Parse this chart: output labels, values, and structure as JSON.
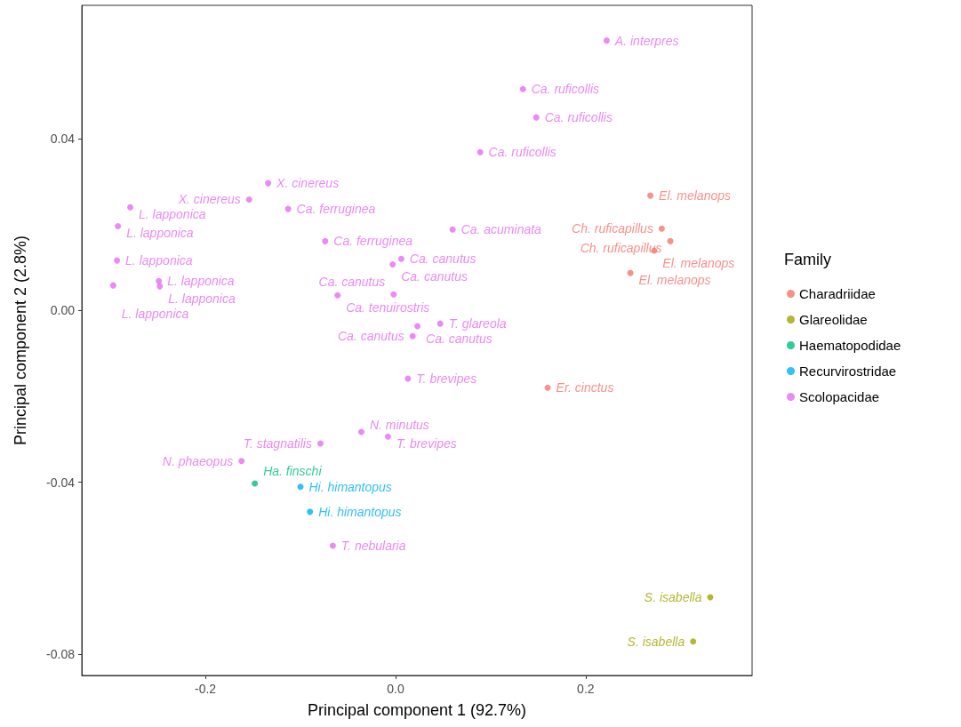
{
  "chart_data": {
    "type": "scatter",
    "xlabel": "Principal component 1 (92.7%)",
    "ylabel": "Principal component 2 (2.8%)",
    "legend_title": "Family",
    "legend": "right",
    "grid": false,
    "marker": "circle",
    "xlim": [
      -0.33,
      0.375
    ],
    "ylim": [
      -0.085,
      0.071
    ],
    "xticks": [
      {
        "value": -0.2,
        "label": "-0.2"
      },
      {
        "value": 0,
        "label": "0.0"
      },
      {
        "value": 0.2,
        "label": "0.2"
      }
    ],
    "yticks": [
      {
        "value": -0.08,
        "label": "-0.08"
      },
      {
        "value": -0.04,
        "label": "-0.04"
      },
      {
        "value": 0,
        "label": "0.00"
      },
      {
        "value": 0.04,
        "label": "0.04"
      }
    ],
    "series": [
      {
        "name": "Charadriidae",
        "color": "#f8766d",
        "x": [
          0.268,
          0.28,
          0.289,
          0.272,
          0.247,
          0.16
        ],
        "values": [
          0.0267,
          0.019,
          0.0161,
          0.0139,
          0.0087,
          -0.018
        ],
        "value_labels": [
          "El. melanops",
          "Ch. ruficapillus",
          "Ch. ruficapillus",
          "El. melanops",
          "El. melanops",
          "Er. cinctus"
        ]
      },
      {
        "name": "Glareolidae",
        "color": "#a3a500",
        "x": [
          0.331,
          0.313
        ],
        "values": [
          -0.0668,
          -0.0771
        ],
        "value_labels": [
          "S. isabella",
          "S. isabella"
        ]
      },
      {
        "name": "Haematopodidae",
        "color": "#00bf7d",
        "x": [
          -0.148
        ],
        "values": [
          -0.0403
        ],
        "value_labels": [
          "Ha. finschi"
        ]
      },
      {
        "name": "Recurvirostridae",
        "color": "#00b0f6",
        "x": [
          -0.1,
          -0.09
        ],
        "values": [
          -0.0411,
          -0.0469
        ],
        "value_labels": [
          "Hi. himantopus",
          "Hi. himantopus"
        ]
      },
      {
        "name": "Scolopacidae",
        "color": "#e76bf3",
        "x": [
          0.222,
          0.134,
          0.148,
          0.089,
          -0.134,
          -0.154,
          -0.113,
          -0.279,
          -0.292,
          -0.074,
          0.06,
          -0.293,
          0.006,
          -0.003,
          -0.249,
          -0.248,
          -0.297,
          -0.061,
          -0.002,
          0.047,
          0.023,
          0.018,
          0.013,
          -0.036,
          -0.008,
          -0.079,
          -0.162,
          -0.066
        ],
        "values": [
          0.0628,
          0.0515,
          0.0449,
          0.0368,
          0.0296,
          0.0258,
          0.0236,
          0.024,
          0.0196,
          0.0161,
          0.0188,
          0.0116,
          0.012,
          0.0107,
          0.0068,
          0.0056,
          0.0058,
          0.0035,
          0.0037,
          -0.0031,
          -0.0037,
          -0.006,
          -0.0159,
          -0.0283,
          -0.0294,
          -0.031,
          -0.0351,
          -0.0548
        ],
        "value_labels": [
          "A. interpres",
          "Ca. ruficollis",
          "Ca. ruficollis",
          "Ca. ruficollis",
          "X. cinereus",
          "X. cinereus",
          "Ca. ferruginea",
          "L. lapponica",
          "L. lapponica",
          "Ca. ferruginea",
          "Ca. acuminata",
          "L. lapponica",
          "Ca. canutus",
          "Ca. canutus",
          "L. lapponica",
          "L. lapponica",
          "L. lapponica",
          "Ca. tenuirostris",
          "Ca. canutus",
          "T. glareola",
          "Ca. canutus",
          "Ca. canutus",
          "T. brevipes",
          "N. minutus",
          "T. brevipes",
          "T. stagnatilis",
          "N. phaeopus",
          "T. nebularia"
        ]
      }
    ]
  }
}
